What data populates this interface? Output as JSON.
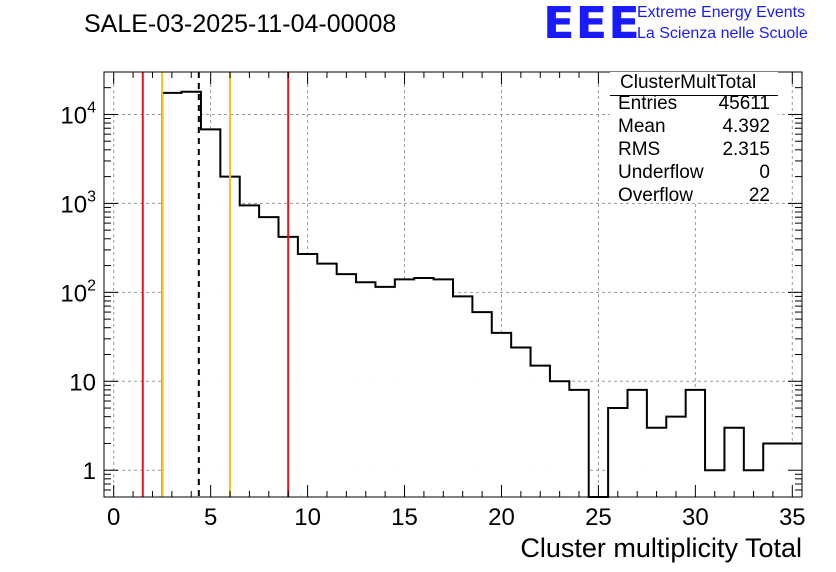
{
  "header": {
    "title": "SALE-03-2025-11-04-00008",
    "logo_text": "EEE",
    "brand_line1": "Extreme Energy Events",
    "brand_line2": "La Scienza nelle Scuole"
  },
  "stats": {
    "title": "ClusterMultTotal",
    "rows": [
      {
        "label": "Entries",
        "value": "45611"
      },
      {
        "label": "Mean",
        "value": "4.392"
      },
      {
        "label": "RMS",
        "value": "2.315"
      },
      {
        "label": "Underflow",
        "value": "0"
      },
      {
        "label": "Overflow",
        "value": "22"
      }
    ]
  },
  "colors": {
    "histogram": "#000000",
    "red_line": "#e3141e",
    "yellow_line": "#f2c21a",
    "grid": "#9a9a9a",
    "logo": "#1a1aff"
  },
  "chart_data": {
    "type": "bar",
    "title": "SALE-03-2025-11-04-00008",
    "xlabel": "Cluster multiplicity Total",
    "ylabel": "",
    "xlim": [
      -0.5,
      35.5
    ],
    "ylim": [
      0.5,
      30000
    ],
    "yscale": "log",
    "grid": true,
    "bin_width": 1,
    "bin_low_edges": [
      2.5,
      3.5,
      4.5,
      5.5,
      6.5,
      7.5,
      8.5,
      9.5,
      10.5,
      11.5,
      12.5,
      13.5,
      14.5,
      15.5,
      16.5,
      17.5,
      18.5,
      19.5,
      20.5,
      21.5,
      22.5,
      23.5,
      24.5,
      25.5,
      26.5,
      27.5,
      28.5,
      29.5,
      30.5,
      31.5,
      32.5,
      33.5,
      34.5
    ],
    "values": [
      17500,
      18000,
      6800,
      2000,
      950,
      700,
      420,
      270,
      210,
      160,
      130,
      115,
      140,
      145,
      140,
      90,
      60,
      35,
      24,
      15,
      10,
      8,
      0,
      5,
      8,
      3,
      4,
      8,
      1,
      3,
      1,
      2,
      2
    ],
    "x_ticks": [
      0,
      5,
      10,
      15,
      20,
      25,
      30,
      35
    ],
    "x_tick_labels": [
      "0",
      "5",
      "10",
      "15",
      "20",
      "25",
      "30",
      "35"
    ],
    "y_ticks": [
      1,
      10,
      100,
      1000,
      10000
    ],
    "y_tick_labels": [
      {
        "base": "1",
        "exp": ""
      },
      {
        "base": "10",
        "exp": ""
      },
      {
        "base": "10",
        "exp": "2"
      },
      {
        "base": "10",
        "exp": "3"
      },
      {
        "base": "10",
        "exp": "4"
      }
    ],
    "vertical_lines": [
      {
        "x": 1.5,
        "color": "red",
        "style": "solid"
      },
      {
        "x": 2.5,
        "color": "yellow",
        "style": "solid"
      },
      {
        "x": 4.39,
        "color": "black",
        "style": "dashed"
      },
      {
        "x": 6.0,
        "color": "yellow",
        "style": "solid"
      },
      {
        "x": 9.0,
        "color": "red",
        "style": "solid"
      }
    ]
  }
}
